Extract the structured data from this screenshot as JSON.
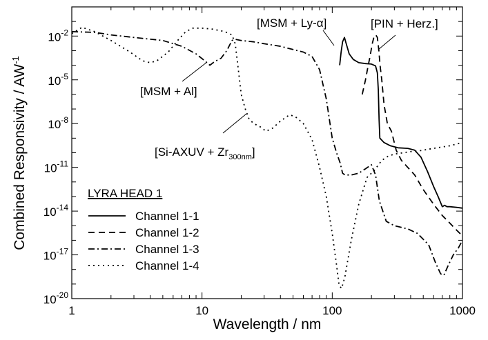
{
  "chart_data": {
    "type": "line",
    "x_scale": "log",
    "y_scale": "log",
    "xlim": [
      1,
      1000
    ],
    "ylim": [
      1e-20,
      1
    ],
    "grid": false,
    "xlabel": "Wavelength / nm",
    "ylabel": "Combined Responsivity / AW",
    "ylabel_sup": "-1",
    "x_ticks": [
      {
        "value": 1,
        "label": "1"
      },
      {
        "value": 10,
        "label": "10"
      },
      {
        "value": 100,
        "label": "100"
      },
      {
        "value": 1000,
        "label": "1000"
      }
    ],
    "y_ticks": [
      {
        "value": 0.01,
        "base": "10",
        "exp": "-2"
      },
      {
        "value": 1e-05,
        "base": "10",
        "exp": "-5"
      },
      {
        "value": 1e-08,
        "base": "10",
        "exp": "-8"
      },
      {
        "value": 1e-11,
        "base": "10",
        "exp": "-11"
      },
      {
        "value": 1e-14,
        "base": "10",
        "exp": "-14"
      },
      {
        "value": 1e-17,
        "base": "10",
        "exp": "-17"
      },
      {
        "value": 1e-20,
        "base": "10",
        "exp": "-20"
      }
    ],
    "legend": {
      "title": "LYRA HEAD 1",
      "placement": "bottom-left"
    },
    "annotations": [
      {
        "text": "[MSM + Ly-α]",
        "x": 118,
        "y": 0.0004
      },
      {
        "text": "[PIN + Herz.]",
        "x": 230,
        "y": 0.001
      },
      {
        "text": "[MSM + Al]",
        "x": 12,
        "y": 0.0001
      },
      {
        "text": "[Si-AXUV + Zr",
        "sub": "300nm",
        "suffix": "]",
        "x": 25,
        "y": 3e-08
      }
    ],
    "series": [
      {
        "name": "Channel 1-1",
        "dash": "solid",
        "points": [
          [
            114,
            0.0001
          ],
          [
            117,
            0.0008
          ],
          [
            120,
            0.004
          ],
          [
            124,
            0.008
          ],
          [
            128,
            0.003
          ],
          [
            135,
            0.0006
          ],
          [
            145,
            0.00025
          ],
          [
            160,
            0.00015
          ],
          [
            180,
            0.00013
          ],
          [
            200,
            0.00012
          ],
          [
            215,
            9e-05
          ],
          [
            222,
            3e-05
          ],
          [
            226,
            2e-06
          ],
          [
            229,
            2e-08
          ],
          [
            232,
            1e-09
          ],
          [
            250,
            5e-10
          ],
          [
            280,
            3e-10
          ],
          [
            320,
            2.2e-10
          ],
          [
            380,
            2e-10
          ],
          [
            430,
            1.5e-10
          ],
          [
            480,
            5e-11
          ],
          [
            540,
            5e-12
          ],
          [
            600,
            5e-13
          ],
          [
            650,
            1e-13
          ],
          [
            700,
            2e-14
          ],
          [
            730,
            2.5e-14
          ],
          [
            760,
            2e-14
          ],
          [
            800,
            2e-14
          ],
          [
            900,
            1.8e-14
          ],
          [
            1000,
            1.6e-14
          ]
        ]
      },
      {
        "name": "Channel 1-2",
        "dash": "dashed",
        "points": [
          [
            170,
            1e-06
          ],
          [
            180,
            1e-05
          ],
          [
            188,
            8e-05
          ],
          [
            195,
            0.0004
          ],
          [
            203,
            0.003
          ],
          [
            210,
            0.01
          ],
          [
            216,
            0.012
          ],
          [
            222,
            0.008
          ],
          [
            228,
            0.001
          ],
          [
            233,
            0.0001
          ],
          [
            240,
            1e-05
          ],
          [
            250,
            2e-07
          ],
          [
            265,
            1e-08
          ],
          [
            285,
            3e-09
          ],
          [
            310,
            1.5e-10
          ],
          [
            340,
            3e-11
          ],
          [
            380,
            1e-11
          ],
          [
            430,
            3e-12
          ],
          [
            500,
            3e-13
          ],
          [
            600,
            3e-14
          ],
          [
            700,
            5e-15
          ],
          [
            800,
            1.5e-15
          ],
          [
            900,
            5e-16
          ],
          [
            1000,
            2e-16
          ]
        ]
      },
      {
        "name": "Channel 1-3",
        "dash": "dashdot",
        "points": [
          [
            1,
            0.02
          ],
          [
            1.5,
            0.018
          ],
          [
            2,
            0.012
          ],
          [
            3,
            0.008
          ],
          [
            5,
            0.005
          ],
          [
            7,
            0.002
          ],
          [
            9,
            0.0006
          ],
          [
            10.5,
            0.0002
          ],
          [
            11.5,
            0.0001
          ],
          [
            12.5,
            0.00018
          ],
          [
            14,
            0.0003
          ],
          [
            15.5,
            0.001
          ],
          [
            17,
            0.005
          ],
          [
            18,
            0.006
          ],
          [
            20,
            0.005
          ],
          [
            25,
            0.004
          ],
          [
            30,
            0.003
          ],
          [
            40,
            0.002
          ],
          [
            50,
            0.0012
          ],
          [
            60,
            0.0008
          ],
          [
            70,
            0.0004
          ],
          [
            80,
            5e-05
          ],
          [
            90,
            5e-07
          ],
          [
            100,
            1e-09
          ],
          [
            108,
            1e-10
          ],
          [
            115,
            2e-11
          ],
          [
            120,
            4e-12
          ],
          [
            125,
            3e-12
          ],
          [
            140,
            3e-12
          ],
          [
            160,
            4e-12
          ],
          [
            180,
            8e-12
          ],
          [
            200,
            1.5e-11
          ],
          [
            215,
            3e-12
          ],
          [
            230,
            5e-14
          ],
          [
            260,
            2e-15
          ],
          [
            300,
            1e-15
          ],
          [
            380,
            6e-16
          ],
          [
            450,
            3e-16
          ],
          [
            550,
            5e-17
          ],
          [
            620,
            3e-18
          ],
          [
            680,
            5e-19
          ],
          [
            720,
            4e-19
          ],
          [
            780,
            2e-18
          ],
          [
            850,
            1e-17
          ],
          [
            930,
            3e-17
          ],
          [
            1000,
            1e-16
          ]
        ]
      },
      {
        "name": "Channel 1-4",
        "dash": "dotted",
        "points": [
          [
            1,
            0.015
          ],
          [
            1.2,
            0.04
          ],
          [
            1.5,
            0.02
          ],
          [
            2,
            0.005
          ],
          [
            2.8,
            0.0008
          ],
          [
            3.5,
            0.0002
          ],
          [
            4,
            0.00015
          ],
          [
            4.5,
            0.0002
          ],
          [
            5.5,
            0.0008
          ],
          [
            6.5,
            0.005
          ],
          [
            7.5,
            0.02
          ],
          [
            8.5,
            0.035
          ],
          [
            10,
            0.035
          ],
          [
            12,
            0.03
          ],
          [
            15,
            0.02
          ],
          [
            17,
            0.012
          ],
          [
            18,
            0.003
          ],
          [
            19,
            5e-05
          ],
          [
            20,
            1e-06
          ],
          [
            21.5,
            1e-07
          ],
          [
            23,
            2e-08
          ],
          [
            25,
            1e-08
          ],
          [
            28,
            6e-09
          ],
          [
            31,
            3e-09
          ],
          [
            35,
            5e-09
          ],
          [
            40,
            1.5e-08
          ],
          [
            47,
            4e-08
          ],
          [
            52,
            3e-08
          ],
          [
            60,
            1e-08
          ],
          [
            70,
            8e-10
          ],
          [
            80,
            1e-11
          ],
          [
            90,
            1e-13
          ],
          [
            100,
            3e-16
          ],
          [
            108,
            2e-18
          ],
          [
            113,
            8e-20
          ],
          [
            118,
            5e-20
          ],
          [
            125,
            3e-19
          ],
          [
            140,
            1e-16
          ],
          [
            160,
            3e-14
          ],
          [
            185,
            2e-12
          ],
          [
            210,
            6e-12
          ],
          [
            240,
            3e-11
          ],
          [
            270,
            6e-11
          ],
          [
            300,
            8e-11
          ],
          [
            350,
            1e-10
          ],
          [
            400,
            1.2e-10
          ],
          [
            450,
            1.3e-10
          ],
          [
            500,
            1.5e-10
          ],
          [
            600,
            2e-10
          ],
          [
            700,
            2.5e-10
          ],
          [
            800,
            3e-10
          ],
          [
            900,
            4e-10
          ],
          [
            1000,
            5e-10
          ]
        ]
      }
    ]
  }
}
